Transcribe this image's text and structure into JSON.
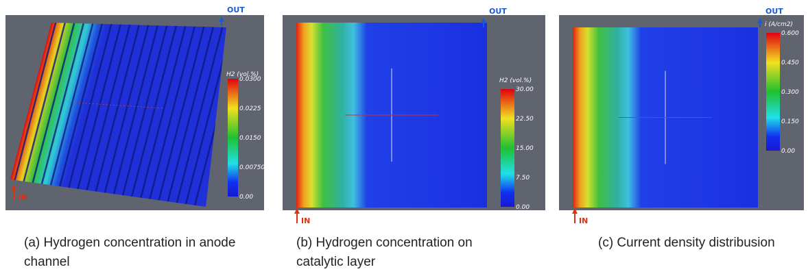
{
  "panels": [
    {
      "caption": [
        "(a) Hydrogen concentration in anode",
        "channel"
      ],
      "legend": {
        "title": "H2 (vol.%)",
        "labels": [
          "0.0300",
          "0.0225",
          "0.0150",
          "0.00750",
          "0.00"
        ]
      },
      "inlet": "IN",
      "outlet": "OUT"
    },
    {
      "caption": [
        "(b) Hydrogen concentration on",
        "catalytic layer"
      ],
      "legend": {
        "title": "H2 (vol.%)",
        "labels": [
          "30.00",
          "22.50",
          "15.00",
          "7.50",
          "0.00"
        ]
      },
      "inlet": "IN",
      "outlet": "OUT"
    },
    {
      "caption": [
        "(c) Current density distribusion"
      ],
      "legend": {
        "title": "i (A/cm2)",
        "labels": [
          "0.600",
          "0.450",
          "0.300",
          "0.150",
          "0.00"
        ]
      },
      "inlet": "IN",
      "outlet": "OUT"
    }
  ]
}
